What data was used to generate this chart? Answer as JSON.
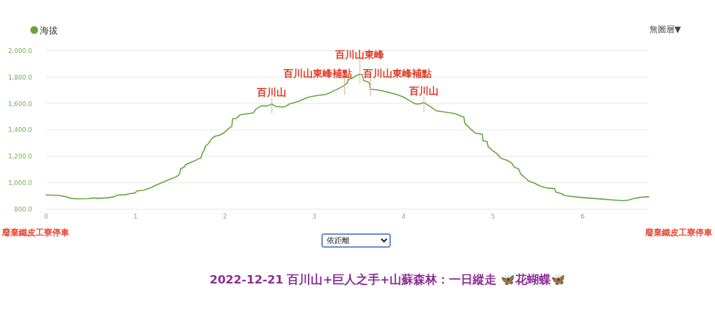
{
  "chart_data": {
    "type": "line",
    "title": "2022-12-21 百川山+巨人之手+山蘇森林：一日縱走 🦋花蝴蝶🦋",
    "x": [
      0,
      0.135,
      0.227,
      0.279,
      0.344,
      0.474,
      0.539,
      0.565,
      0.682,
      0.76,
      0.794,
      0.891,
      0.93,
      0.995,
      1.016,
      1.099,
      1.177,
      1.229,
      1.307,
      1.385,
      1.45,
      1.477,
      1.495,
      1.505,
      1.542,
      1.563,
      1.62,
      1.672,
      1.693,
      1.729,
      1.75,
      1.771,
      1.784,
      1.815,
      1.854,
      1.893,
      1.945,
      1.997,
      2.049,
      2.078,
      2.086,
      2.128,
      2.174,
      2.317,
      2.348,
      2.408,
      2.473,
      2.525,
      2.564,
      2.642,
      2.681,
      2.72,
      2.823,
      2.875,
      2.94,
      3.044,
      3.122,
      3.174,
      3.252,
      3.33,
      3.369,
      3.382,
      3.421,
      3.473,
      3.512,
      3.538,
      3.551,
      3.59,
      3.616,
      3.629,
      3.694,
      3.771,
      3.823,
      3.927,
      4.005,
      4.07,
      4.135,
      4.187,
      4.226,
      4.291,
      4.369,
      4.499,
      4.577,
      4.655,
      4.672,
      4.685,
      4.737,
      4.802,
      4.88,
      4.888,
      4.932,
      4.945,
      4.997,
      5.036,
      5.089,
      5.154,
      5.206,
      5.237,
      5.284,
      5.31,
      5.349,
      5.401,
      5.453,
      5.531,
      5.609,
      5.688,
      5.701,
      5.766,
      5.805,
      5.987,
      6.221,
      6.326,
      6.456,
      6.508,
      6.56,
      6.638,
      6.69,
      6.74
    ],
    "series": [
      {
        "name": "海拔",
        "color": "#62a53a",
        "values": [
          907,
          904,
          893,
          881,
          878,
          879,
          885,
          881,
          885,
          893,
          906,
          909,
          916,
          922,
          937,
          944,
          964,
          981,
          1003,
          1026,
          1043,
          1054,
          1070,
          1105,
          1117,
          1137,
          1154,
          1167,
          1179,
          1184,
          1225,
          1251,
          1276,
          1295,
          1334,
          1352,
          1360,
          1381,
          1413,
          1427,
          1484,
          1487,
          1514,
          1528,
          1557,
          1581,
          1581,
          1595,
          1578,
          1571,
          1578,
          1595,
          1615,
          1631,
          1648,
          1661,
          1666,
          1680,
          1705,
          1733,
          1754,
          1782,
          1789,
          1812,
          1821,
          1817,
          1772,
          1765,
          1754,
          1706,
          1703,
          1694,
          1684,
          1666,
          1645,
          1618,
          1595,
          1597,
          1606,
          1578,
          1543,
          1530,
          1522,
          1500,
          1498,
          1448,
          1413,
          1374,
          1366,
          1316,
          1311,
          1272,
          1241,
          1223,
          1184,
          1170,
          1149,
          1117,
          1105,
          1064,
          1043,
          1011,
          999,
          973,
          959,
          955,
          929,
          916,
          902,
          888,
          876,
          870,
          863,
          867,
          878,
          888,
          892,
          893
        ]
      }
    ],
    "xlim": [
      0,
      6.74
    ],
    "ylim": [
      800,
      2000
    ],
    "xticks": [
      0,
      1,
      2,
      3,
      4,
      5,
      6
    ],
    "yticks": [
      {
        "value": 800,
        "label": "800.0"
      },
      {
        "value": 1000,
        "label": "1,000.0"
      },
      {
        "value": 1200,
        "label": "1,200.0"
      },
      {
        "value": 1400,
        "label": "1,400.0"
      },
      {
        "value": 1600,
        "label": "1,600.0"
      },
      {
        "value": 1800,
        "label": "1,800.0"
      },
      {
        "value": 2000,
        "label": "2,000.0"
      }
    ],
    "grid": "y",
    "legend": "top left",
    "annotations": [
      {
        "text": "百川山",
        "x": 2.525,
        "y": 1595
      },
      {
        "text": "百川山東峰補點",
        "x": 3.338,
        "y": 1740
      },
      {
        "text": "百川山東峰",
        "x": 3.51,
        "y": 1820
      },
      {
        "text": "百川山東峰補點",
        "x": 3.626,
        "y": 1730
      },
      {
        "text": "百川山",
        "x": 4.226,
        "y": 1606
      },
      "廢棄鐵皮工寮停車",
      "廢棄鐵皮工寮停車",
      "無圖層▼",
      "依距離"
    ]
  }
}
